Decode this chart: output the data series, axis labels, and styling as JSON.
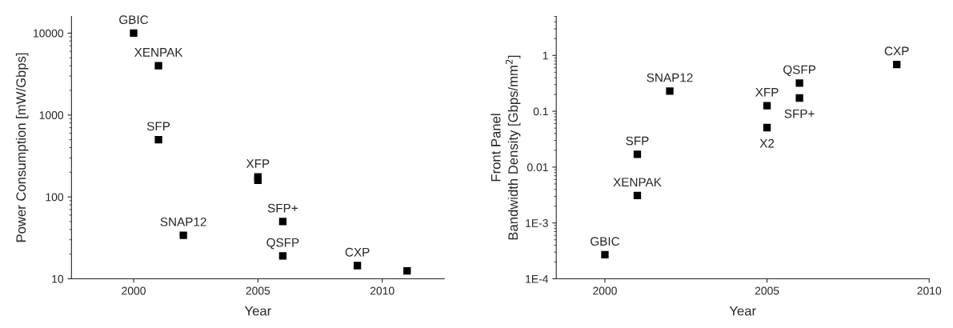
{
  "chart_data": [
    {
      "type": "scatter",
      "xlabel": "Year",
      "ylabel": "Power Consumption [mW/Gbps]",
      "log": "y",
      "marker": "square",
      "grid": false,
      "xlim": [
        1997.5,
        2012.5
      ],
      "xticks": [
        2000,
        2005,
        2010
      ],
      "ylim": [
        10,
        16000
      ],
      "yticks": [
        10,
        100,
        1000,
        10000
      ],
      "series": [
        {
          "color": "#000000",
          "x": [
            2000,
            2001,
            2001,
            2002,
            2005,
            2005,
            2006,
            2006,
            2009,
            2011
          ],
          "values": [
            10000,
            4000,
            500,
            34,
            175,
            160,
            50,
            19,
            14.5,
            12.5
          ]
        }
      ],
      "annotations": [
        {
          "text": "GBIC",
          "x": 2000,
          "y": 10000
        },
        {
          "text": "XENPAK",
          "x": 2001,
          "y": 4000
        },
        {
          "text": "SFP",
          "x": 2001,
          "y": 500
        },
        {
          "text": "SNAP12",
          "x": 2002,
          "y": 34
        },
        {
          "text": "XFP",
          "x": 2005,
          "y": 175
        },
        {
          "text": "SFP+",
          "x": 2006,
          "y": 50
        },
        {
          "text": "QSFP",
          "x": 2006,
          "y": 19
        },
        {
          "text": "CXP",
          "x": 2009,
          "y": 14.5
        }
      ]
    },
    {
      "type": "scatter",
      "xlabel": "Year",
      "ylabel": "Front Panel\nBandwidth Density [Gbps/mm$^{2}$]",
      "log": "y",
      "marker": "square",
      "grid": false,
      "xlim": [
        1998.5,
        2010
      ],
      "xticks": [
        2000,
        2005,
        2010
      ],
      "ylim": [
        0.0001,
        5
      ],
      "yticks": [
        {
          "value": 0.0001,
          "label": "1E-4"
        },
        {
          "value": 0.001,
          "label": "1E-3"
        },
        0.01,
        0.1,
        1
      ],
      "series": [
        {
          "color": "#000000",
          "x": [
            2000,
            2001,
            2001,
            2002,
            2005,
            2005,
            2006,
            2006,
            2009
          ],
          "values": [
            0.00027,
            0.0031,
            0.017,
            0.23,
            0.126,
            0.051,
            0.32,
            0.173,
            0.69
          ]
        }
      ],
      "annotations": [
        {
          "text": "GBIC",
          "x": 2000,
          "y": 0.00027
        },
        {
          "text": "XENPAK",
          "x": 2001,
          "y": 0.0031
        },
        {
          "text": "SFP",
          "x": 2001,
          "y": 0.017
        },
        {
          "text": "SNAP12",
          "x": 2002,
          "y": 0.23
        },
        {
          "text": "XFP",
          "x": 2005,
          "y": 0.126
        },
        {
          "text": "X2",
          "x": 2005,
          "y": 0.051
        },
        {
          "text": "QSFP",
          "x": 2006,
          "y": 0.32
        },
        {
          "text": "SFP+",
          "x": 2006,
          "y": 0.173
        },
        {
          "text": "CXP",
          "x": 2009,
          "y": 0.69
        }
      ]
    }
  ]
}
